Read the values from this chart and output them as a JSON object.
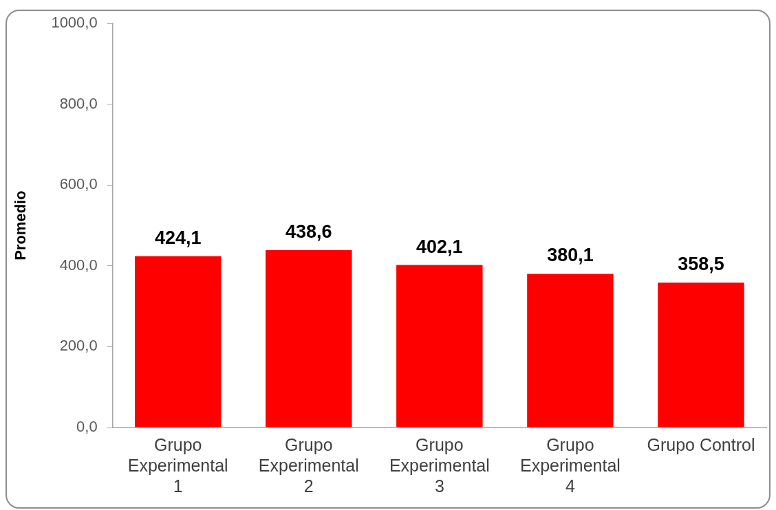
{
  "chart_data": {
    "type": "bar",
    "ylabel": "Promedio",
    "categories": [
      "Grupo Experimental 1",
      "Grupo Experimental 2",
      "Grupo Experimental 3",
      "Grupo Experimental 4",
      "Grupo Control"
    ],
    "values": [
      424.1,
      438.6,
      402.1,
      380.1,
      358.5
    ],
    "value_labels": [
      "424,1",
      "438,6",
      "402,1",
      "380,1",
      "358,5"
    ],
    "color": "#ff0000",
    "ylim": [
      0,
      1000
    ],
    "yticks": [
      {
        "value": 0,
        "label": "0,0"
      },
      {
        "value": 200,
        "label": "200,0"
      },
      {
        "value": 400,
        "label": "400,0"
      },
      {
        "value": 600,
        "label": "600,0"
      },
      {
        "value": 800,
        "label": "800,0"
      },
      {
        "value": 1000,
        "label": "1000,0"
      }
    ]
  }
}
